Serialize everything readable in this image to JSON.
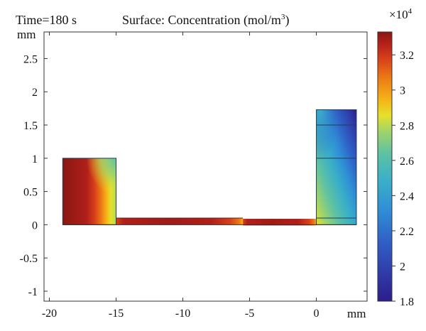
{
  "header": {
    "time_label": "Time=180 s",
    "title": "Surface: Concentration (mol/m",
    "title_sup": "3",
    "title_close": ")"
  },
  "chart_data": {
    "type": "heatmap",
    "xunit": "mm",
    "yunit": "mm",
    "xlim": [
      -20.4,
      3.8
    ],
    "ylim": [
      -1.15,
      2.9
    ],
    "x_ticks": [
      -20,
      -15,
      -10,
      -5,
      0
    ],
    "y_ticks": [
      -1,
      -0.5,
      0,
      0.5,
      1,
      1.5,
      2,
      2.5
    ],
    "colorbar": {
      "multiplier": "×10",
      "multiplier_exp": "4",
      "ticks": [
        3.2,
        3,
        2.8,
        2.6,
        2.4,
        2.2,
        2,
        1.8
      ],
      "range": [
        1.8,
        3.33
      ],
      "colors": [
        "#2b1d8a",
        "#2f3aa8",
        "#2f5fc6",
        "#2f8fd6",
        "#3ab0c8",
        "#5fc2a2",
        "#9fd46a",
        "#e6e02a",
        "#f5b317",
        "#ec7a14",
        "#d8401a",
        "#b01f1a",
        "#8a1712"
      ]
    },
    "geometry": {
      "left_block": {
        "x": [
          -19,
          -15
        ],
        "y": [
          0,
          1
        ]
      },
      "channel_left": {
        "x": [
          -15,
          -5.5
        ],
        "y": [
          0,
          0.1
        ]
      },
      "channel_right": {
        "x": [
          -5.5,
          0
        ],
        "y": [
          0,
          0.1
        ]
      },
      "right_block": {
        "x": [
          0,
          3
        ],
        "y": [
          0,
          1.73
        ]
      },
      "right_block_lines_y": [
        0.1,
        1,
        1.5
      ]
    }
  }
}
